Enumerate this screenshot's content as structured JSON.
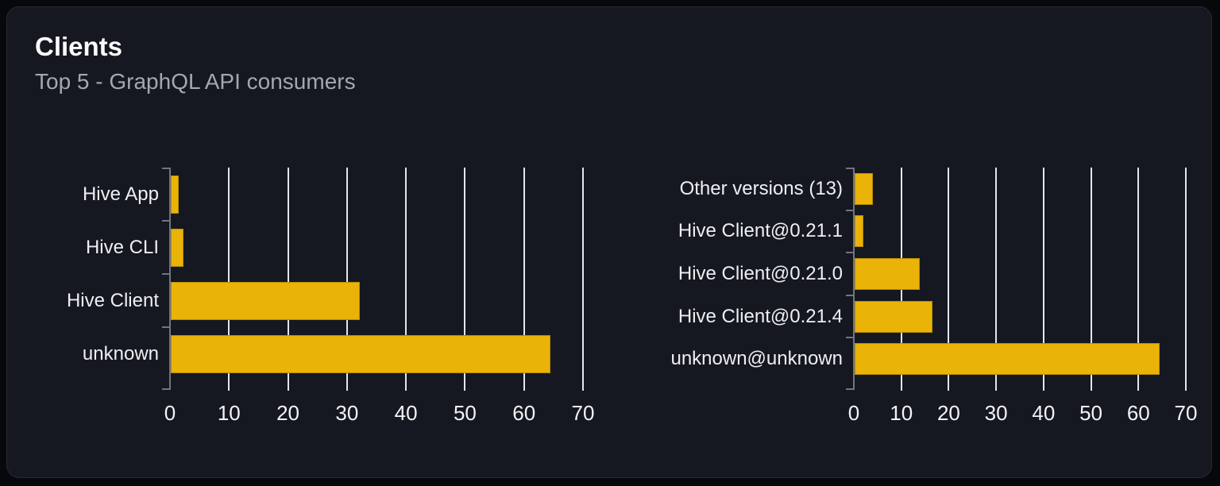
{
  "header": {
    "title": "Clients",
    "subtitle": "Top 5 - GraphQL API consumers"
  },
  "colors": {
    "bar": "#eab308",
    "card_background": "#151820",
    "gridline": "#e3e7ec",
    "axis": "#6f7680",
    "label_text": "#edeff2",
    "title_text": "#fafbfc",
    "subtitle_text": "#a3a8af"
  },
  "chart_data": [
    {
      "type": "bar",
      "orientation": "horizontal",
      "title": "",
      "categories": [
        "Hive App",
        "Hive CLI",
        "Hive Client",
        "unknown"
      ],
      "values": [
        1.4,
        2.2,
        32,
        64.4
      ],
      "xlim": [
        0,
        70
      ],
      "xticks": [
        0,
        10,
        20,
        30,
        40,
        50,
        60,
        70
      ],
      "grid": true,
      "legend": false,
      "bar_color": "#eab308"
    },
    {
      "type": "bar",
      "orientation": "horizontal",
      "title": "",
      "categories": [
        "Other versions (13)",
        "Hive Client@0.21.1",
        "Hive Client@0.21.0",
        "Hive Client@0.21.4",
        "unknown@unknown"
      ],
      "values": [
        3.9,
        1.8,
        13.8,
        16.4,
        64.3
      ],
      "xlim": [
        0,
        70
      ],
      "xticks": [
        0,
        10,
        20,
        30,
        40,
        50,
        60,
        70
      ],
      "grid": true,
      "legend": false,
      "bar_color": "#eab308"
    }
  ]
}
